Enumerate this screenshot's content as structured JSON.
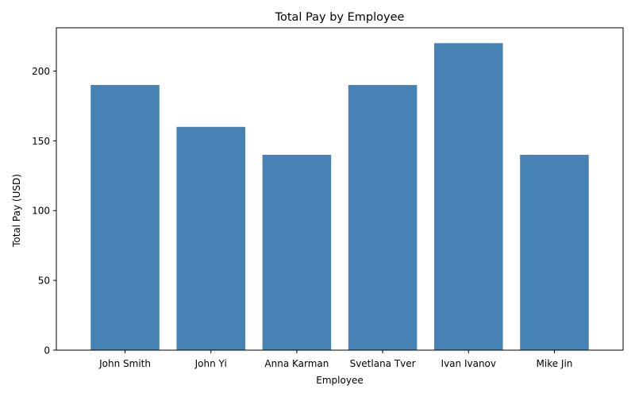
{
  "chart_data": {
    "type": "bar",
    "title": "Total Pay by Employee",
    "xlabel": "Employee",
    "ylabel": "Total Pay (USD)",
    "categories": [
      "John Smith",
      "John Yi",
      "Anna Karman",
      "Svetlana Tver",
      "Ivan Ivanov",
      "Mike Jin"
    ],
    "values": [
      190,
      160,
      140,
      190,
      220,
      140
    ],
    "ylim": [
      0,
      231
    ],
    "yticks": [
      0,
      50,
      100,
      150,
      200
    ],
    "grid": false,
    "legend": "none",
    "bar_color": "#4682b4"
  }
}
